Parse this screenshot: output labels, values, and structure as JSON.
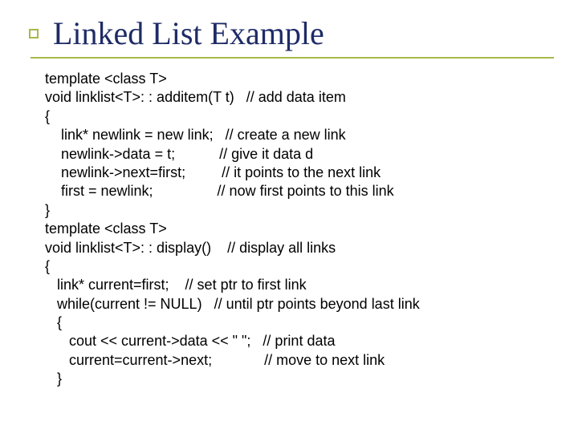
{
  "colors": {
    "title": "#1e2b66",
    "bullet_border": "#a8b84a",
    "underline": "#a8b84a",
    "code_text": "#000000",
    "background": "#ffffff"
  },
  "title": "Linked List Example",
  "code_fontsize": 18,
  "code": {
    "lines": [
      "template <class T>",
      "void linklist<T>: : additem(T t)   // add data item",
      "{",
      "    link* newlink = new link;   // create a new link",
      "    newlink->data = t;           // give it data d",
      "    newlink->next=first;         // it points to the next link",
      "    first = newlink;                // now first points to this link",
      "}",
      "template <class T>",
      "void linklist<T>: : display()    // display all links",
      "{",
      "   link* current=first;    // set ptr to first link",
      "   while(current != NULL)   // until ptr points beyond last link",
      "   {",
      "      cout << current->data << \" \";   // print data",
      "      current=current->next;             // move to next link",
      "   }"
    ]
  }
}
